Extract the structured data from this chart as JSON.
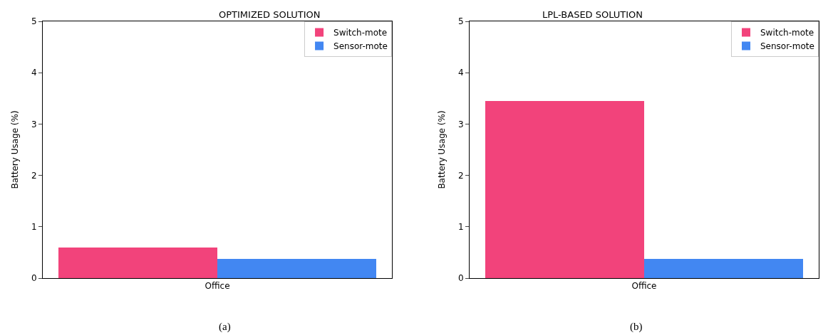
{
  "chart_data": [
    {
      "type": "bar",
      "title": "OPTIMIZED SOLUTION",
      "ylabel": "Battery Usage (%)",
      "categories": [
        "Office"
      ],
      "series": [
        {
          "name": "Switch-mote",
          "color": "#f2437b",
          "values": [
            0.59
          ]
        },
        {
          "name": "Sensor-mote",
          "color": "#4287f2",
          "values": [
            0.38
          ]
        }
      ],
      "ylim": [
        0,
        5
      ],
      "yticks": [
        0,
        1,
        2,
        3,
        4,
        5
      ],
      "legend": "top right",
      "annotations": [
        "(a)"
      ]
    },
    {
      "type": "bar",
      "title": "LPL-BASED SOLUTION",
      "ylabel": "Battery Usage (%)",
      "categories": [
        "Office"
      ],
      "series": [
        {
          "name": "Switch-mote",
          "color": "#f2437b",
          "values": [
            3.45
          ]
        },
        {
          "name": "Sensor-mote",
          "color": "#4287f2",
          "values": [
            0.37
          ]
        }
      ],
      "ylim": [
        0,
        5
      ],
      "yticks": [
        0,
        1,
        2,
        3,
        4,
        5
      ],
      "legend": "top right",
      "annotations": [
        "(b)"
      ]
    }
  ]
}
